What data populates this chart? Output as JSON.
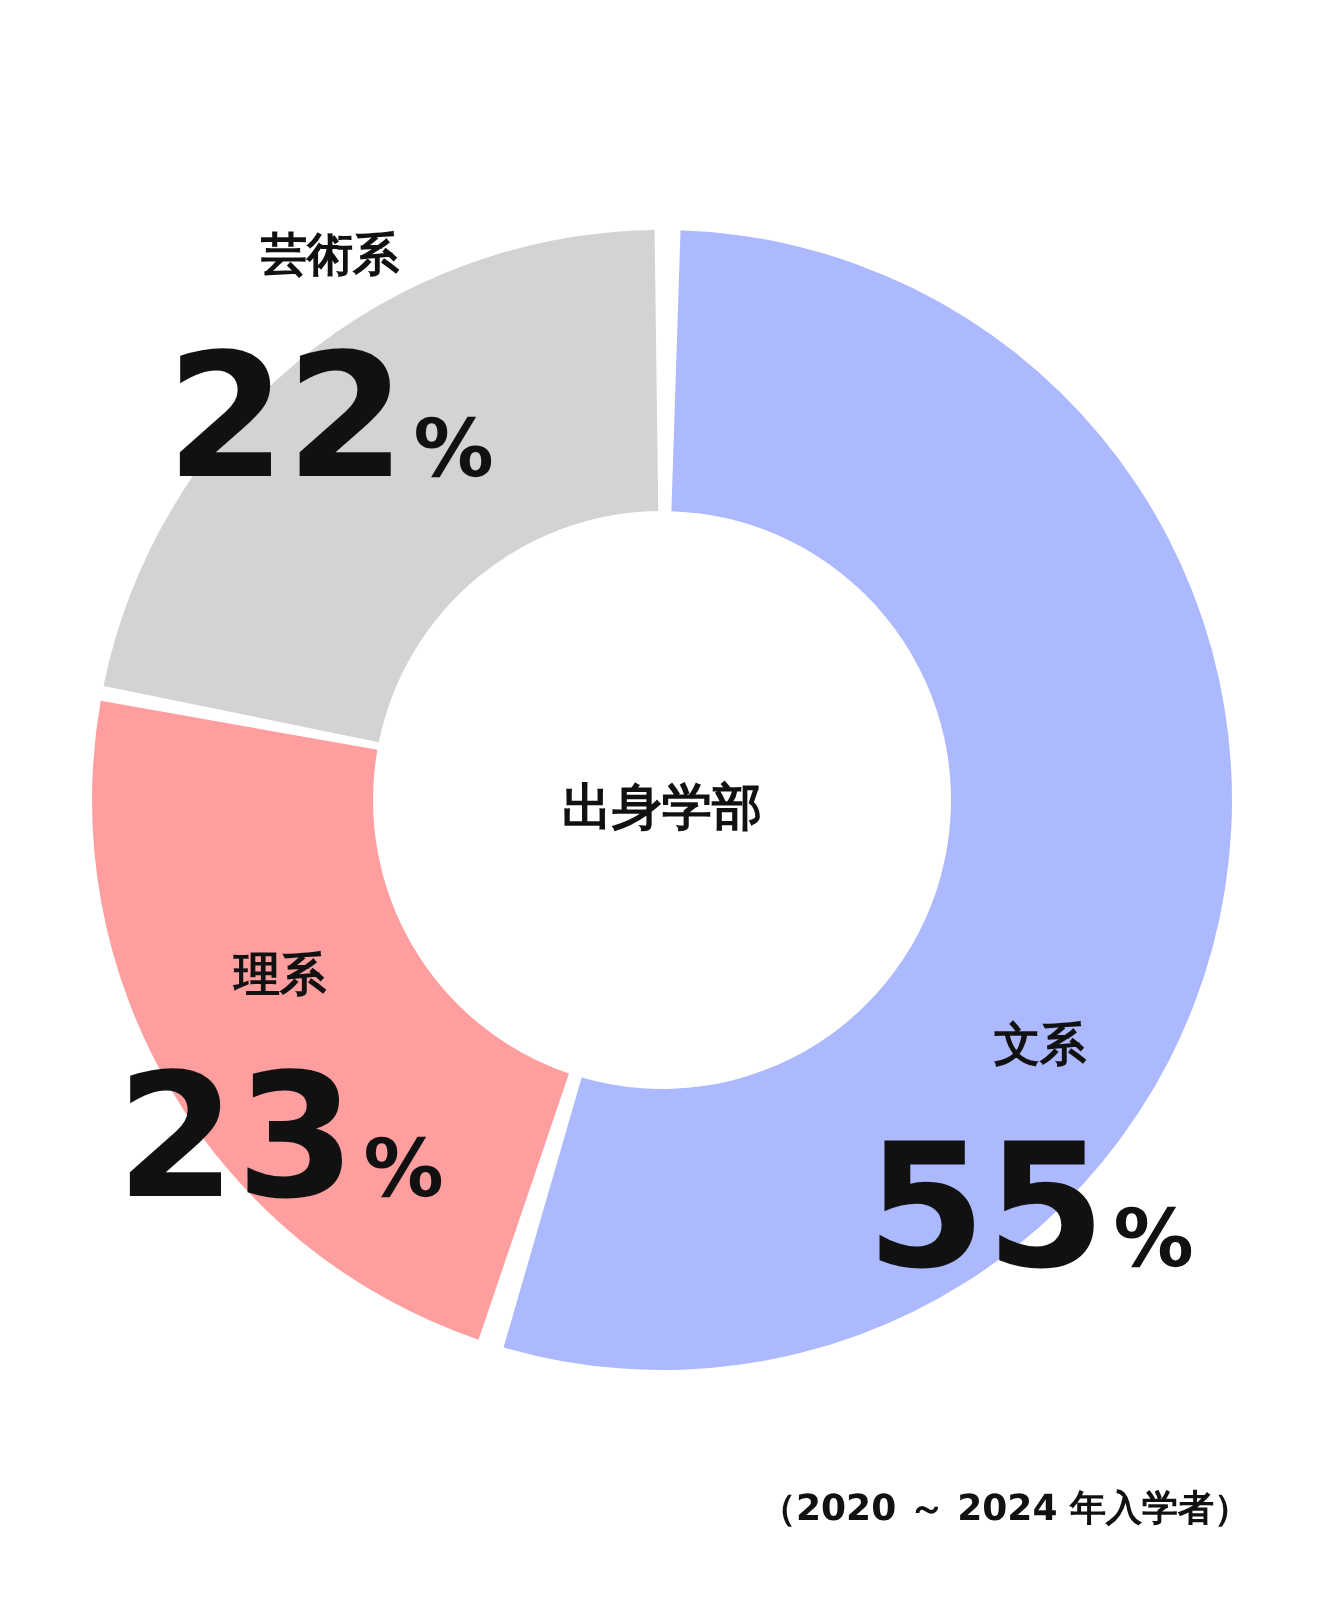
{
  "chart_data": {
    "type": "donut",
    "categories": [
      "文系",
      "理系",
      "芸術系"
    ],
    "values": [
      55,
      23,
      22
    ],
    "colors": [
      "#adb9fe",
      "#ff9e9e",
      "#d3d3d3"
    ],
    "value_labels": [
      "55%",
      "23%",
      "22%"
    ],
    "legend": false,
    "annotations": [
      "出身学部",
      "（2020 ～ 2024 年入学者）"
    ]
  }
}
